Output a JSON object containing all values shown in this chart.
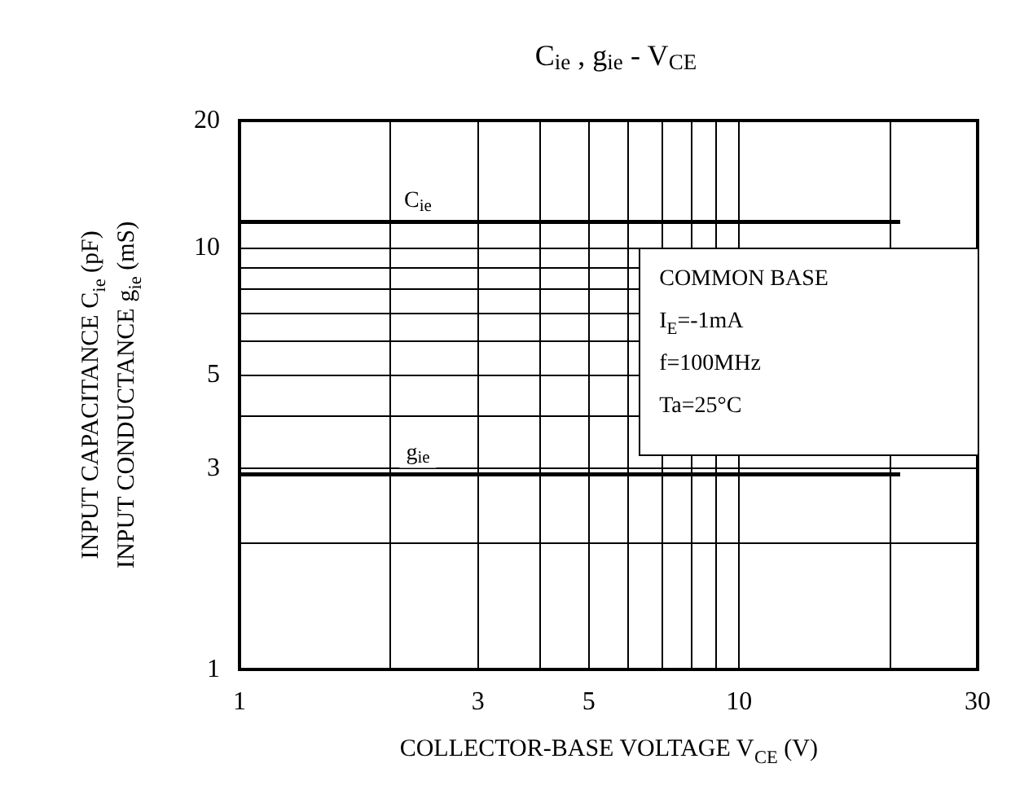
{
  "chart_data": {
    "type": "line",
    "title": "C$_{ie}$ , g$_{ie}$ - V$_{CE}$",
    "xlabel": "COLLECTOR-BASE VOLTAGE V$_{CE}$ (V)",
    "ylabel": "INPUT CAPACITANCE C$_{ie}$ (pF)\nINPUT CONDUCTANCE g$_{ie}$ (mS)",
    "x": [
      1,
      21
    ],
    "series": [
      {
        "name": "C$_{ie}$",
        "color": "#000000",
        "values": [
          11.5,
          11.5
        ]
      },
      {
        "name": "g$_{ie}$",
        "color": "#000000",
        "values": [
          2.9,
          2.9
        ]
      }
    ],
    "log": "xy",
    "xlim": [
      1,
      30
    ],
    "ylim": [
      1,
      20
    ],
    "xticks": [
      1,
      {
        "value": 2,
        "label": null
      },
      3,
      {
        "value": 4,
        "label": null
      },
      5,
      {
        "value": 6,
        "label": null
      },
      {
        "value": 7,
        "label": null
      },
      {
        "value": 8,
        "label": null
      },
      {
        "value": 9,
        "label": null
      },
      10,
      {
        "value": 20,
        "label": null
      },
      30
    ],
    "yticks": [
      1,
      {
        "value": 2,
        "label": null
      },
      3,
      {
        "value": 4,
        "label": null
      },
      5,
      {
        "value": 6,
        "label": null
      },
      {
        "value": 7,
        "label": null
      },
      {
        "value": 8,
        "label": null
      },
      {
        "value": 9,
        "label": null
      },
      10,
      20
    ],
    "grid": true,
    "legend": false,
    "marker": "none",
    "line_style": "solid",
    "annotations": [
      "COMMON BASE",
      "I$_{E}$=-1mA",
      "f=100MHz",
      "Ta=25°C"
    ]
  }
}
